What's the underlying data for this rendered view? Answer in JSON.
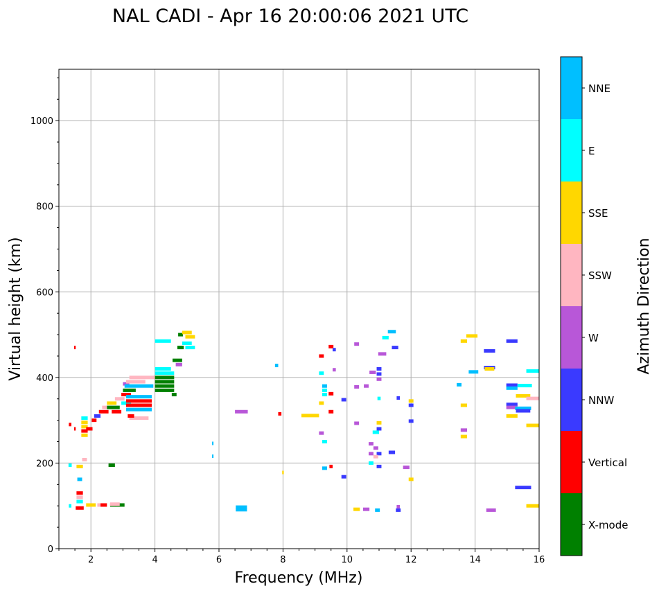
{
  "chart_data": {
    "type": "scatter",
    "title": "NAL CADI - Apr 16 20:00:06 2021 UTC",
    "xlabel": "Frequency (MHz)",
    "ylabel": "Virtual height (km)",
    "xlim": [
      1,
      16
    ],
    "ylim": [
      0,
      1120
    ],
    "xticks": [
      2,
      4,
      6,
      8,
      10,
      12,
      14,
      16
    ],
    "yticks": [
      0,
      200,
      400,
      600,
      800,
      1000
    ],
    "grid": true,
    "colorbar": {
      "title": "Azimuth Direction",
      "categories": [
        {
          "name": "X-mode",
          "color": "#008000"
        },
        {
          "name": "Vertical",
          "color": "#ff0000"
        },
        {
          "name": "NNW",
          "color": "#3a3aff"
        },
        {
          "name": "W",
          "color": "#b857d8"
        },
        {
          "name": "SSW",
          "color": "#ffb6c1"
        },
        {
          "name": "SSE",
          "color": "#ffd700"
        },
        {
          "name": "E",
          "color": "#00ffff"
        },
        {
          "name": "NNE",
          "color": "#00bfff"
        }
      ]
    },
    "points": [
      {
        "f": 1.5,
        "h": 470,
        "w": 0.05,
        "c": "Vertical"
      },
      {
        "f": 1.35,
        "h": 290,
        "w": 0.08,
        "c": "Vertical"
      },
      {
        "f": 1.5,
        "h": 280,
        "w": 0.05,
        "c": "Vertical"
      },
      {
        "f": 1.8,
        "h": 305,
        "w": 0.2,
        "c": "E"
      },
      {
        "f": 1.8,
        "h": 295,
        "w": 0.2,
        "c": "SSE"
      },
      {
        "f": 1.8,
        "h": 285,
        "w": 0.2,
        "c": "SSE"
      },
      {
        "f": 1.8,
        "h": 275,
        "w": 0.2,
        "c": "Vertical"
      },
      {
        "f": 1.8,
        "h": 265,
        "w": 0.2,
        "c": "SSE"
      },
      {
        "f": 1.95,
        "h": 280,
        "w": 0.2,
        "c": "Vertical"
      },
      {
        "f": 2.1,
        "h": 300,
        "w": 0.15,
        "c": "Vertical"
      },
      {
        "f": 2.2,
        "h": 310,
        "w": 0.2,
        "c": "NNW"
      },
      {
        "f": 2.4,
        "h": 320,
        "w": 0.3,
        "c": "Vertical"
      },
      {
        "f": 2.5,
        "h": 330,
        "w": 0.3,
        "c": "SSW"
      },
      {
        "f": 2.65,
        "h": 340,
        "w": 0.3,
        "c": "SSE"
      },
      {
        "f": 2.7,
        "h": 330,
        "w": 0.4,
        "c": "X-mode"
      },
      {
        "f": 2.8,
        "h": 320,
        "w": 0.3,
        "c": "Vertical"
      },
      {
        "f": 2.9,
        "h": 350,
        "w": 0.3,
        "c": "SSW"
      },
      {
        "f": 3.1,
        "h": 360,
        "w": 0.3,
        "c": "Vertical"
      },
      {
        "f": 3.1,
        "h": 385,
        "w": 0.2,
        "c": "W"
      },
      {
        "f": 3.2,
        "h": 370,
        "w": 0.4,
        "c": "X-mode"
      },
      {
        "f": 3.1,
        "h": 340,
        "w": 0.3,
        "c": "E"
      },
      {
        "f": 3.5,
        "h": 345,
        "w": 0.8,
        "c": "Vertical"
      },
      {
        "f": 3.5,
        "h": 335,
        "w": 0.8,
        "c": "Vertical"
      },
      {
        "f": 3.5,
        "h": 325,
        "w": 0.8,
        "c": "NNE"
      },
      {
        "f": 3.5,
        "h": 355,
        "w": 0.8,
        "c": "NNE"
      },
      {
        "f": 3.5,
        "h": 380,
        "w": 0.9,
        "c": "NNE"
      },
      {
        "f": 3.4,
        "h": 390,
        "w": 0.6,
        "c": "SSW"
      },
      {
        "f": 3.6,
        "h": 400,
        "w": 0.8,
        "c": "SSW"
      },
      {
        "f": 3.5,
        "h": 305,
        "w": 0.6,
        "c": "SSW"
      },
      {
        "f": 3.25,
        "h": 310,
        "w": 0.2,
        "c": "Vertical"
      },
      {
        "f": 4.25,
        "h": 485,
        "w": 0.5,
        "c": "E"
      },
      {
        "f": 4.25,
        "h": 420,
        "w": 0.5,
        "c": "E"
      },
      {
        "f": 4.3,
        "h": 410,
        "w": 0.6,
        "c": "E"
      },
      {
        "f": 4.3,
        "h": 400,
        "w": 0.6,
        "c": "X-mode"
      },
      {
        "f": 4.3,
        "h": 390,
        "w": 0.6,
        "c": "X-mode"
      },
      {
        "f": 4.3,
        "h": 380,
        "w": 0.6,
        "c": "X-mode"
      },
      {
        "f": 4.3,
        "h": 370,
        "w": 0.6,
        "c": "X-mode"
      },
      {
        "f": 4.6,
        "h": 360,
        "w": 0.15,
        "c": "X-mode"
      },
      {
        "f": 4.7,
        "h": 440,
        "w": 0.3,
        "c": "X-mode"
      },
      {
        "f": 4.8,
        "h": 470,
        "w": 0.2,
        "c": "X-mode"
      },
      {
        "f": 4.8,
        "h": 500,
        "w": 0.15,
        "c": "X-mode"
      },
      {
        "f": 5.0,
        "h": 505,
        "w": 0.3,
        "c": "SSE"
      },
      {
        "f": 5.1,
        "h": 495,
        "w": 0.3,
        "c": "SSE"
      },
      {
        "f": 5.0,
        "h": 480,
        "w": 0.3,
        "c": "E"
      },
      {
        "f": 5.1,
        "h": 470,
        "w": 0.3,
        "c": "E"
      },
      {
        "f": 4.75,
        "h": 430,
        "w": 0.2,
        "c": "W"
      },
      {
        "f": 1.35,
        "h": 195,
        "w": 0.1,
        "c": "E"
      },
      {
        "f": 1.65,
        "h": 192,
        "w": 0.2,
        "c": "SSE"
      },
      {
        "f": 1.8,
        "h": 208,
        "w": 0.15,
        "c": "SSW"
      },
      {
        "f": 1.65,
        "h": 162,
        "w": 0.15,
        "c": "NNE"
      },
      {
        "f": 2.65,
        "h": 195,
        "w": 0.2,
        "c": "X-mode"
      },
      {
        "f": 1.65,
        "h": 130,
        "w": 0.2,
        "c": "Vertical"
      },
      {
        "f": 1.65,
        "h": 120,
        "w": 0.2,
        "c": "SSW"
      },
      {
        "f": 1.65,
        "h": 110,
        "w": 0.2,
        "c": "E"
      },
      {
        "f": 1.35,
        "h": 100,
        "w": 0.08,
        "c": "E"
      },
      {
        "f": 1.65,
        "h": 95,
        "w": 0.25,
        "c": "Vertical"
      },
      {
        "f": 2.0,
        "h": 102,
        "w": 0.3,
        "c": "SSE"
      },
      {
        "f": 2.3,
        "h": 102,
        "w": 0.2,
        "c": "SSW"
      },
      {
        "f": 2.4,
        "h": 102,
        "w": 0.2,
        "c": "Vertical"
      },
      {
        "f": 2.7,
        "h": 102,
        "w": 0.2,
        "c": "X-mode"
      },
      {
        "f": 2.9,
        "h": 102,
        "w": 0.3,
        "c": "X-mode"
      },
      {
        "f": 2.75,
        "h": 104,
        "w": 0.3,
        "c": "SSW"
      },
      {
        "f": 5.8,
        "h": 246,
        "w": 0.03,
        "c": "NNE"
      },
      {
        "f": 5.8,
        "h": 216,
        "w": 0.03,
        "c": "NNE"
      },
      {
        "f": 6.7,
        "h": 320,
        "w": 0.4,
        "c": "W"
      },
      {
        "f": 6.7,
        "h": 97,
        "w": 0.35,
        "c": "NNE"
      },
      {
        "f": 6.7,
        "h": 91,
        "w": 0.35,
        "c": "NNE"
      },
      {
        "f": 7.8,
        "h": 428,
        "w": 0.1,
        "c": "NNE"
      },
      {
        "f": 7.9,
        "h": 315,
        "w": 0.1,
        "c": "Vertical"
      },
      {
        "f": 8.0,
        "h": 178,
        "w": 0.05,
        "c": "SSE"
      },
      {
        "f": 8.85,
        "h": 311,
        "w": 0.55,
        "c": "SSE"
      },
      {
        "f": 9.2,
        "h": 450,
        "w": 0.15,
        "c": "Vertical"
      },
      {
        "f": 9.5,
        "h": 472,
        "w": 0.15,
        "c": "Vertical"
      },
      {
        "f": 9.6,
        "h": 465,
        "w": 0.1,
        "c": "NNW"
      },
      {
        "f": 9.2,
        "h": 410,
        "w": 0.15,
        "c": "E"
      },
      {
        "f": 9.6,
        "h": 418,
        "w": 0.1,
        "c": "W"
      },
      {
        "f": 9.3,
        "h": 380,
        "w": 0.15,
        "c": "NNE"
      },
      {
        "f": 9.3,
        "h": 370,
        "w": 0.15,
        "c": "E"
      },
      {
        "f": 9.3,
        "h": 360,
        "w": 0.15,
        "c": "E"
      },
      {
        "f": 9.2,
        "h": 340,
        "w": 0.15,
        "c": "SSE"
      },
      {
        "f": 9.5,
        "h": 362,
        "w": 0.15,
        "c": "Vertical"
      },
      {
        "f": 9.5,
        "h": 320,
        "w": 0.15,
        "c": "Vertical"
      },
      {
        "f": 9.2,
        "h": 270,
        "w": 0.15,
        "c": "W"
      },
      {
        "f": 9.3,
        "h": 250,
        "w": 0.15,
        "c": "E"
      },
      {
        "f": 9.3,
        "h": 188,
        "w": 0.15,
        "c": "NNE"
      },
      {
        "f": 9.5,
        "h": 192,
        "w": 0.1,
        "c": "Vertical"
      },
      {
        "f": 9.9,
        "h": 168,
        "w": 0.15,
        "c": "NNW"
      },
      {
        "f": 9.9,
        "h": 348,
        "w": 0.15,
        "c": "NNW"
      },
      {
        "f": 10.3,
        "h": 478,
        "w": 0.15,
        "c": "W"
      },
      {
        "f": 10.3,
        "h": 378,
        "w": 0.15,
        "c": "W"
      },
      {
        "f": 10.3,
        "h": 293,
        "w": 0.15,
        "c": "W"
      },
      {
        "f": 10.6,
        "h": 380,
        "w": 0.15,
        "c": "W"
      },
      {
        "f": 10.3,
        "h": 92,
        "w": 0.2,
        "c": "SSE"
      },
      {
        "f": 10.6,
        "h": 92,
        "w": 0.2,
        "c": "W"
      },
      {
        "f": 10.95,
        "h": 90,
        "w": 0.15,
        "c": "NNE"
      },
      {
        "f": 10.8,
        "h": 412,
        "w": 0.2,
        "c": "W"
      },
      {
        "f": 11.0,
        "h": 420,
        "w": 0.15,
        "c": "NNW"
      },
      {
        "f": 11.0,
        "h": 408,
        "w": 0.15,
        "c": "NNW"
      },
      {
        "f": 11.0,
        "h": 396,
        "w": 0.15,
        "c": "W"
      },
      {
        "f": 11.1,
        "h": 455,
        "w": 0.25,
        "c": "W"
      },
      {
        "f": 11.2,
        "h": 493,
        "w": 0.2,
        "c": "E"
      },
      {
        "f": 11.4,
        "h": 507,
        "w": 0.25,
        "c": "NNE"
      },
      {
        "f": 11.5,
        "h": 470,
        "w": 0.2,
        "c": "NNW"
      },
      {
        "f": 11.0,
        "h": 351,
        "w": 0.1,
        "c": "E"
      },
      {
        "f": 11.0,
        "h": 294,
        "w": 0.15,
        "c": "SSE"
      },
      {
        "f": 11.0,
        "h": 280,
        "w": 0.15,
        "c": "NNW"
      },
      {
        "f": 10.9,
        "h": 272,
        "w": 0.2,
        "c": "E"
      },
      {
        "f": 10.75,
        "h": 245,
        "w": 0.15,
        "c": "W"
      },
      {
        "f": 10.9,
        "h": 235,
        "w": 0.15,
        "c": "W"
      },
      {
        "f": 11.0,
        "h": 222,
        "w": 0.15,
        "c": "NNW"
      },
      {
        "f": 10.75,
        "h": 222,
        "w": 0.15,
        "c": "W"
      },
      {
        "f": 10.9,
        "h": 215,
        "w": 0.15,
        "c": "SSW"
      },
      {
        "f": 10.75,
        "h": 200,
        "w": 0.15,
        "c": "E"
      },
      {
        "f": 11.0,
        "h": 192,
        "w": 0.15,
        "c": "NNW"
      },
      {
        "f": 11.4,
        "h": 225,
        "w": 0.2,
        "c": "NNW"
      },
      {
        "f": 11.6,
        "h": 352,
        "w": 0.1,
        "c": "NNW"
      },
      {
        "f": 11.6,
        "h": 90,
        "w": 0.15,
        "c": "NNW"
      },
      {
        "f": 11.6,
        "h": 98,
        "w": 0.1,
        "c": "W"
      },
      {
        "f": 11.85,
        "h": 190,
        "w": 0.2,
        "c": "W"
      },
      {
        "f": 12.0,
        "h": 345,
        "w": 0.15,
        "c": "SSE"
      },
      {
        "f": 12.0,
        "h": 335,
        "w": 0.15,
        "c": "NNW"
      },
      {
        "f": 12.0,
        "h": 298,
        "w": 0.15,
        "c": "NNW"
      },
      {
        "f": 12.0,
        "h": 162,
        "w": 0.15,
        "c": "SSE"
      },
      {
        "f": 13.5,
        "h": 383,
        "w": 0.15,
        "c": "NNE"
      },
      {
        "f": 13.65,
        "h": 485,
        "w": 0.2,
        "c": "SSE"
      },
      {
        "f": 13.9,
        "h": 497,
        "w": 0.35,
        "c": "SSE"
      },
      {
        "f": 13.95,
        "h": 413,
        "w": 0.3,
        "c": "NNE"
      },
      {
        "f": 13.65,
        "h": 335,
        "w": 0.2,
        "c": "SSE"
      },
      {
        "f": 13.65,
        "h": 277,
        "w": 0.2,
        "c": "W"
      },
      {
        "f": 13.65,
        "h": 262,
        "w": 0.2,
        "c": "SSE"
      },
      {
        "f": 14.45,
        "h": 462,
        "w": 0.35,
        "c": "NNW"
      },
      {
        "f": 14.45,
        "h": 423,
        "w": 0.35,
        "c": "NNW"
      },
      {
        "f": 14.45,
        "h": 420,
        "w": 0.3,
        "c": "SSE"
      },
      {
        "f": 14.5,
        "h": 90,
        "w": 0.3,
        "c": "W"
      },
      {
        "f": 15.15,
        "h": 485,
        "w": 0.35,
        "c": "NNW"
      },
      {
        "f": 15.15,
        "h": 382,
        "w": 0.35,
        "c": "NNW"
      },
      {
        "f": 15.15,
        "h": 375,
        "w": 0.35,
        "c": "NNE"
      },
      {
        "f": 15.55,
        "h": 381,
        "w": 0.45,
        "c": "E"
      },
      {
        "f": 15.15,
        "h": 337,
        "w": 0.35,
        "c": "NNW"
      },
      {
        "f": 15.15,
        "h": 330,
        "w": 0.35,
        "c": "W"
      },
      {
        "f": 15.5,
        "h": 357,
        "w": 0.45,
        "c": "SSE"
      },
      {
        "f": 15.5,
        "h": 328,
        "w": 0.5,
        "c": "NNE"
      },
      {
        "f": 15.5,
        "h": 322,
        "w": 0.45,
        "c": "NNW"
      },
      {
        "f": 15.15,
        "h": 310,
        "w": 0.35,
        "c": "SSE"
      },
      {
        "f": 15.8,
        "h": 415,
        "w": 0.4,
        "c": "E"
      },
      {
        "f": 15.8,
        "h": 351,
        "w": 0.4,
        "c": "SSW"
      },
      {
        "f": 15.8,
        "h": 288,
        "w": 0.4,
        "c": "SSE"
      },
      {
        "f": 15.5,
        "h": 143,
        "w": 0.5,
        "c": "NNW"
      },
      {
        "f": 15.8,
        "h": 100,
        "w": 0.4,
        "c": "SSE"
      }
    ]
  }
}
